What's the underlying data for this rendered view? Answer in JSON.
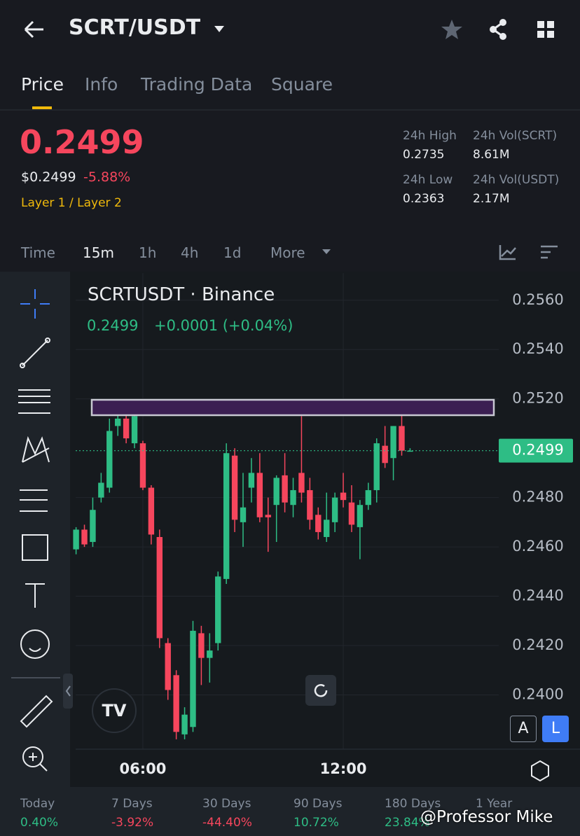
{
  "header": {
    "symbol": "SCRT/USDT"
  },
  "tabs": [
    "Price",
    "Info",
    "Trading Data",
    "Square"
  ],
  "price": {
    "last": "0.2499",
    "usd": "$0.2499",
    "change": "-5.88%",
    "tags": "Layer 1 / Layer 2"
  },
  "stats": [
    {
      "label": "24h High",
      "value": "0.2735"
    },
    {
      "label": "24h Vol(SCRT)",
      "value": "8.61M"
    },
    {
      "label": "24h Low",
      "value": "0.2363"
    },
    {
      "label": "24h Vol(USDT)",
      "value": "2.17M"
    }
  ],
  "intervals": [
    "Time",
    "15m",
    "1h",
    "4h",
    "1d",
    "More"
  ],
  "chart_data": {
    "type": "candlestick",
    "title": "SCRTUSDT · Binance",
    "legend_price": "0.2499",
    "legend_change": "+0.0001 (+0.04%)",
    "categories": [
      null,
      null,
      null,
      null,
      null,
      null,
      null,
      null,
      "06:00",
      null,
      null,
      null,
      null,
      null,
      null,
      null,
      null,
      null,
      null,
      null,
      null,
      null,
      null,
      null,
      null,
      null,
      null,
      null,
      null,
      null,
      null,
      null,
      "12:00",
      null,
      null,
      null,
      null,
      null,
      null,
      null,
      null
    ],
    "open": [
      0.2459,
      0.2467,
      0.2462,
      0.248,
      0.2484,
      0.2509,
      0.2512,
      0.2502,
      0.2502,
      0.2484,
      0.2464,
      0.2421,
      0.2408,
      0.2384,
      0.2387,
      0.2425,
      0.2415,
      0.2421,
      0.2447,
      0.2497,
      0.247,
      0.2484,
      0.249,
      0.2473,
      0.2477,
      0.2489,
      0.2477,
      0.249,
      0.2483,
      0.2473,
      0.2464,
      0.247,
      0.2482,
      0.2478,
      0.2468,
      0.2477,
      0.2483,
      0.2501,
      0.2496,
      0.2509,
      0.2499
    ],
    "high": [
      0.2468,
      0.2469,
      0.248,
      0.249,
      0.2512,
      0.2519,
      0.2514,
      0.2515,
      0.2503,
      0.2485,
      0.2467,
      0.2423,
      0.241,
      0.2395,
      0.243,
      0.2428,
      0.2425,
      0.245,
      0.2502,
      0.25,
      0.249,
      0.2496,
      0.2498,
      0.248,
      0.2489,
      0.2498,
      0.2488,
      0.2513,
      0.2488,
      0.2476,
      0.2482,
      0.2482,
      0.249,
      0.2485,
      0.2479,
      0.2486,
      0.2504,
      0.2509,
      0.2509,
      0.2514,
      0.25
    ],
    "low": [
      0.2457,
      0.246,
      0.246,
      0.2478,
      0.2482,
      0.2505,
      0.2502,
      0.25,
      0.2483,
      0.2461,
      0.2419,
      0.2398,
      0.2382,
      0.2382,
      0.2385,
      0.2404,
      0.2405,
      0.2418,
      0.2445,
      0.2466,
      0.246,
      0.2478,
      0.247,
      0.2458,
      0.2462,
      0.2474,
      0.2472,
      0.2478,
      0.2467,
      0.2463,
      0.2462,
      0.2466,
      0.2476,
      0.2466,
      0.2455,
      0.2475,
      0.2478,
      0.2492,
      0.2487,
      0.2497,
      0.2499
    ],
    "close": [
      0.2467,
      0.2461,
      0.2475,
      0.2486,
      0.2507,
      0.2512,
      0.2504,
      0.2513,
      0.2484,
      0.2465,
      0.2423,
      0.2402,
      0.2385,
      0.2392,
      0.2426,
      0.2415,
      0.2418,
      0.2448,
      0.2498,
      0.2471,
      0.2476,
      0.249,
      0.2472,
      0.2472,
      0.2488,
      0.2478,
      0.2483,
      0.2482,
      0.2471,
      0.2466,
      0.2471,
      0.248,
      0.2479,
      0.2469,
      0.2477,
      0.2483,
      0.2502,
      0.2494,
      0.2509,
      0.2499,
      0.2499
    ],
    "up_color": "#2ebd85",
    "down_color": "#f6465d",
    "ylim": [
      0.2378,
      0.2571
    ],
    "yticks": [
      {
        "value": 0.256,
        "label": "0.2560"
      },
      {
        "value": 0.254,
        "label": "0.2540"
      },
      {
        "value": 0.252,
        "label": "0.2520"
      },
      {
        "value": 0.248,
        "label": "0.2480"
      },
      {
        "value": 0.246,
        "label": "0.2460"
      },
      {
        "value": 0.244,
        "label": "0.2440"
      },
      {
        "value": 0.242,
        "label": "0.2420"
      },
      {
        "value": 0.24,
        "label": "0.2400"
      }
    ],
    "last_price": 0.2499,
    "grid": true,
    "scale_buttons": [
      "A",
      "L"
    ]
  },
  "performance": [
    {
      "label": "Today",
      "value": "0.40%"
    },
    {
      "label": "7 Days",
      "value": "-3.92%"
    },
    {
      "label": "30 Days",
      "value": "-44.40%"
    },
    {
      "label": "90 Days",
      "value": "10.72%"
    },
    {
      "label": "180 Days",
      "value": "23.84%"
    },
    {
      "label": "1 Year"
    }
  ],
  "watermark": "@Professor Mike"
}
